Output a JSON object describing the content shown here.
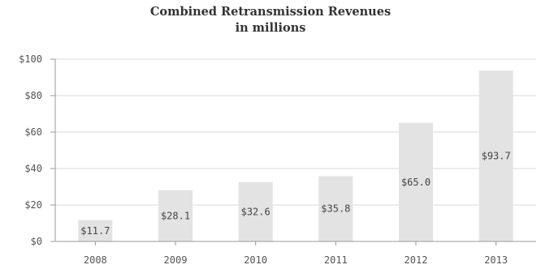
{
  "chart_data": {
    "type": "bar",
    "title": "Combined Retransmission Revenues",
    "subtitle": "in millions",
    "categories": [
      "2008",
      "2009",
      "2010",
      "2011",
      "2012",
      "2013"
    ],
    "values": [
      11.7,
      28.1,
      32.6,
      35.8,
      65.0,
      93.7
    ],
    "data_labels": [
      "$11.7",
      "$28.1",
      "$32.6",
      "$35.8",
      "$65.0",
      "$93.7"
    ],
    "yticks": [
      0,
      20,
      40,
      60,
      80,
      100
    ],
    "ytick_labels": [
      "$0",
      "$20",
      "$40",
      "$60",
      "$80",
      "$100"
    ],
    "ylim": [
      0,
      100
    ],
    "xlabel": "",
    "ylabel": "",
    "grid": true,
    "legend": "none",
    "colors": {
      "bar": "#e3e3e3",
      "grid": "#d9d9d9",
      "axis": "#9a9a9a"
    }
  }
}
